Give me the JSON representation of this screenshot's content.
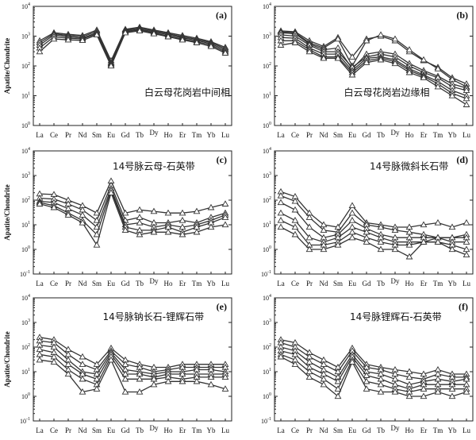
{
  "chart_data": [
    {
      "type": "line",
      "panel": "(a)",
      "note": "白云母花岗岩中间相",
      "ylabel": "Apatite/Chondrite",
      "yscale": "log",
      "ylim": [
        1,
        10000
      ],
      "yticks": [
        {
          "base": "10",
          "exp": "0"
        },
        {
          "base": "10",
          "exp": "1"
        },
        {
          "base": "10",
          "exp": "2"
        },
        {
          "base": "10",
          "exp": "3"
        },
        {
          "base": "10",
          "exp": "4"
        }
      ],
      "categories": [
        "La",
        "Ce",
        "Pr",
        "Nd",
        "Sm",
        "Eu",
        "Gd",
        "Tb",
        "Dy",
        "Ho",
        "Er",
        "Tm",
        "Yb",
        "Lu"
      ],
      "series": [
        {
          "values": [
            700,
            1300,
            1150,
            1050,
            1600,
            150,
            1700,
            2000,
            1600,
            1300,
            1050,
            850,
            650,
            420
          ]
        },
        {
          "values": [
            600,
            1200,
            1050,
            950,
            1450,
            130,
            1600,
            1850,
            1500,
            1200,
            950,
            780,
            600,
            380
          ]
        },
        {
          "values": [
            500,
            1100,
            950,
            850,
            1300,
            120,
            1500,
            1700,
            1400,
            1100,
            880,
            720,
            550,
            340
          ]
        },
        {
          "values": [
            400,
            950,
            850,
            800,
            1200,
            110,
            1400,
            1600,
            1300,
            1000,
            800,
            650,
            500,
            300
          ]
        },
        {
          "values": [
            300,
            800,
            750,
            720,
            1100,
            100,
            1300,
            1500,
            1200,
            950,
            750,
            600,
            450,
            270
          ]
        }
      ]
    },
    {
      "type": "line",
      "panel": "(b)",
      "note": "白云母花岗岩边缘相",
      "ylabel": "",
      "yscale": "log",
      "ylim": [
        1,
        10000
      ],
      "yticks": [
        {
          "base": "10",
          "exp": "0"
        },
        {
          "base": "10",
          "exp": "1"
        },
        {
          "base": "10",
          "exp": "2"
        },
        {
          "base": "10",
          "exp": "3"
        },
        {
          "base": "10",
          "exp": "4"
        }
      ],
      "categories": [
        "La",
        "Ce",
        "Pr",
        "Nd",
        "Sm",
        "Eu",
        "Gd",
        "Tb",
        "Dy",
        "Ho",
        "Er",
        "Tm",
        "Yb",
        "Lu"
      ],
      "series": [
        {
          "values": [
            1500,
            1400,
            700,
            450,
            900,
            200,
            800,
            1000,
            700,
            300,
            150,
            90,
            40,
            25
          ]
        },
        {
          "values": [
            1400,
            1300,
            600,
            400,
            800,
            100,
            700,
            1100,
            800,
            350,
            160,
            80,
            35,
            20
          ]
        },
        {
          "values": [
            1300,
            1200,
            550,
            350,
            400,
            80,
            250,
            300,
            250,
            120,
            70,
            45,
            25,
            18
          ]
        },
        {
          "values": [
            1100,
            1000,
            500,
            300,
            300,
            90,
            200,
            250,
            200,
            100,
            60,
            40,
            20,
            15
          ]
        },
        {
          "values": [
            900,
            850,
            400,
            250,
            250,
            70,
            180,
            200,
            160,
            80,
            50,
            30,
            15,
            10
          ]
        },
        {
          "values": [
            700,
            700,
            350,
            200,
            200,
            60,
            150,
            180,
            140,
            70,
            45,
            25,
            12,
            8
          ]
        },
        {
          "values": [
            500,
            600,
            300,
            180,
            180,
            50,
            130,
            160,
            120,
            60,
            40,
            20,
            10,
            5
          ]
        }
      ]
    },
    {
      "type": "line",
      "panel": "(c)",
      "note": "14号脉云母-石英带",
      "ylabel": "Apatite/Chondrite",
      "yscale": "log",
      "ylim": [
        0.1,
        10000
      ],
      "yticks": [
        {
          "base": "10",
          "exp": "-1"
        },
        {
          "base": "10",
          "exp": "0"
        },
        {
          "base": "10",
          "exp": "1"
        },
        {
          "base": "10",
          "exp": "2"
        },
        {
          "base": "10",
          "exp": "3"
        },
        {
          "base": "10",
          "exp": "4"
        }
      ],
      "categories": [
        "La",
        "Ce",
        "Pr",
        "Nd",
        "Sm",
        "Eu",
        "Gd",
        "Tb",
        "Dy",
        "Ho",
        "Er",
        "Tm",
        "Yb",
        "Lu"
      ],
      "series": [
        {
          "values": [
            180,
            170,
            100,
            60,
            30,
            600,
            30,
            40,
            35,
            30,
            30,
            35,
            50,
            70
          ]
        },
        {
          "values": [
            120,
            110,
            70,
            40,
            15,
            400,
            15,
            20,
            12,
            12,
            15,
            12,
            20,
            30
          ]
        },
        {
          "values": [
            90,
            80,
            45,
            25,
            8,
            300,
            10,
            12,
            8,
            10,
            8,
            10,
            15,
            25
          ]
        },
        {
          "values": [
            80,
            60,
            30,
            15,
            4,
            250,
            8,
            6,
            6,
            8,
            5,
            8,
            12,
            20
          ]
        },
        {
          "values": [
            70,
            50,
            25,
            12,
            1.5,
            200,
            6,
            4,
            5,
            5,
            4,
            5,
            8,
            10
          ]
        }
      ]
    },
    {
      "type": "line",
      "panel": "(d)",
      "note": "14号脉微斜长石带",
      "ylabel": "",
      "yscale": "log",
      "ylim": [
        0.1,
        10000
      ],
      "yticks": [
        {
          "base": "10",
          "exp": "-1"
        },
        {
          "base": "10",
          "exp": "0"
        },
        {
          "base": "10",
          "exp": "1"
        },
        {
          "base": "10",
          "exp": "2"
        },
        {
          "base": "10",
          "exp": "3"
        },
        {
          "base": "10",
          "exp": "4"
        }
      ],
      "categories": [
        "La",
        "Ce",
        "Pr",
        "Nd",
        "Sm",
        "Eu",
        "Gd",
        "Tb",
        "Dy",
        "Ho",
        "Er",
        "Tm",
        "Yb",
        "Lu"
      ],
      "series": [
        {
          "values": [
            220,
            140,
            30,
            10,
            8,
            60,
            12,
            10,
            8,
            8,
            10,
            12,
            8,
            12
          ]
        },
        {
          "values": [
            150,
            90,
            20,
            6,
            5,
            30,
            10,
            8,
            6,
            5,
            4,
            3,
            3,
            4
          ]
        },
        {
          "values": [
            80,
            40,
            8,
            3,
            4,
            15,
            7,
            4,
            3,
            3,
            3,
            3,
            3,
            3
          ]
        },
        {
          "values": [
            30,
            15,
            3,
            2,
            3,
            8,
            5,
            3,
            2,
            2,
            2,
            3,
            2,
            2
          ]
        },
        {
          "values": [
            15,
            8,
            1.5,
            1.5,
            2,
            5,
            3,
            2,
            1.5,
            1.5,
            2,
            2,
            1.5,
            1
          ]
        },
        {
          "values": [
            8,
            4,
            1,
            1,
            1.5,
            3,
            2,
            1,
            1,
            0.5,
            2,
            2,
            1,
            0.6
          ]
        }
      ]
    },
    {
      "type": "line",
      "panel": "(e)",
      "note": "14号脉钠长石-锂辉石带",
      "ylabel": "Apatite/Chondrite",
      "yscale": "log",
      "ylim": [
        0.1,
        10000
      ],
      "yticks": [
        {
          "base": "10",
          "exp": "-1"
        },
        {
          "base": "10",
          "exp": "0"
        },
        {
          "base": "10",
          "exp": "1"
        },
        {
          "base": "10",
          "exp": "2"
        },
        {
          "base": "10",
          "exp": "3"
        },
        {
          "base": "10",
          "exp": "4"
        }
      ],
      "categories": [
        "La",
        "Ce",
        "Pr",
        "Nd",
        "Sm",
        "Eu",
        "Gd",
        "Tb",
        "Dy",
        "Ho",
        "Er",
        "Tm",
        "Yb",
        "Lu"
      ],
      "series": [
        {
          "values": [
            250,
            200,
            80,
            40,
            20,
            90,
            30,
            20,
            15,
            15,
            20,
            20,
            20,
            20
          ]
        },
        {
          "values": [
            180,
            150,
            50,
            20,
            12,
            70,
            20,
            15,
            10,
            12,
            15,
            15,
            15,
            15
          ]
        },
        {
          "values": [
            120,
            100,
            30,
            10,
            8,
            60,
            12,
            10,
            8,
            10,
            10,
            12,
            12,
            10
          ]
        },
        {
          "values": [
            80,
            60,
            20,
            8,
            5,
            50,
            8,
            8,
            6,
            8,
            8,
            8,
            8,
            8
          ]
        },
        {
          "values": [
            50,
            40,
            12,
            5,
            3,
            40,
            5,
            5,
            5,
            6,
            5,
            6,
            6,
            6
          ]
        },
        {
          "values": [
            30,
            25,
            8,
            1.5,
            2,
            30,
            1.5,
            1.5,
            3,
            4,
            4,
            4,
            3,
            2
          ]
        }
      ]
    },
    {
      "type": "line",
      "panel": "(f)",
      "note": "14号脉锂辉石-石英带",
      "ylabel": "",
      "yscale": "log",
      "ylim": [
        0.1,
        10000
      ],
      "yticks": [
        {
          "base": "10",
          "exp": "-1"
        },
        {
          "base": "10",
          "exp": "0"
        },
        {
          "base": "10",
          "exp": "1"
        },
        {
          "base": "10",
          "exp": "2"
        },
        {
          "base": "10",
          "exp": "3"
        },
        {
          "base": "10",
          "exp": "4"
        }
      ],
      "categories": [
        "La",
        "Ce",
        "Pr",
        "Nd",
        "Sm",
        "Eu",
        "Gd",
        "Tb",
        "Dy",
        "Ho",
        "Er",
        "Tm",
        "Yb",
        "Lu"
      ],
      "series": [
        {
          "values": [
            200,
            150,
            60,
            30,
            15,
            90,
            20,
            15,
            12,
            10,
            8,
            12,
            8,
            8
          ]
        },
        {
          "values": [
            150,
            100,
            40,
            20,
            10,
            70,
            15,
            12,
            8,
            6,
            5,
            8,
            6,
            6
          ]
        },
        {
          "values": [
            100,
            70,
            25,
            12,
            6,
            50,
            10,
            8,
            5,
            3,
            4,
            5,
            4,
            5
          ]
        },
        {
          "values": [
            70,
            50,
            15,
            8,
            4,
            40,
            7,
            5,
            3,
            2,
            3,
            3,
            3,
            3
          ]
        },
        {
          "values": [
            50,
            30,
            10,
            5,
            2,
            30,
            4,
            3,
            2,
            1.5,
            2,
            2,
            2,
            2
          ]
        },
        {
          "values": [
            40,
            20,
            6,
            3,
            1,
            25,
            2,
            1.5,
            1.5,
            1,
            1,
            1.5,
            1,
            1.5
          ]
        }
      ]
    }
  ]
}
